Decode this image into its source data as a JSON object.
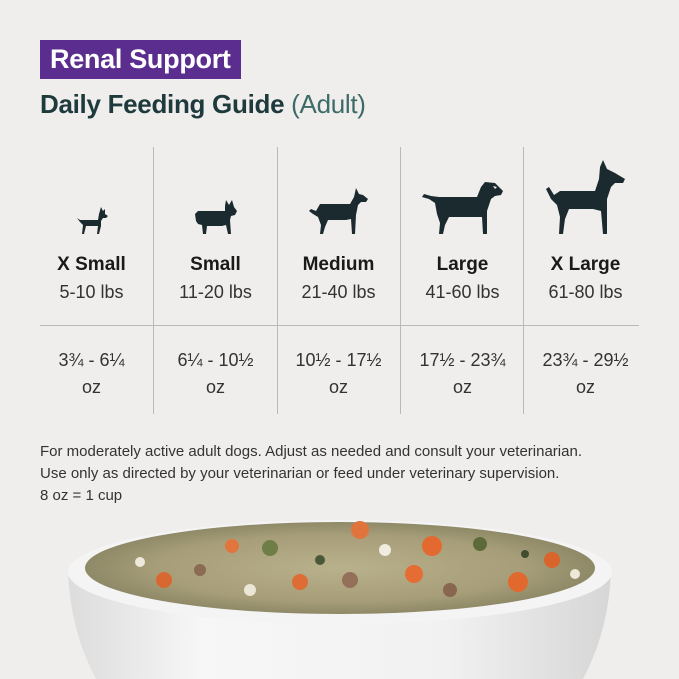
{
  "badge": "Renal Support",
  "title": {
    "main": "Daily Feeding Guide",
    "sub": "(Adult)"
  },
  "sizes": [
    {
      "name": "X Small",
      "weight": "5-10 lbs",
      "amount_line1": "3¾ - 6¼",
      "amount_line2": "oz",
      "icon": "x-small-dog-icon"
    },
    {
      "name": "Small",
      "weight": "11-20 lbs",
      "amount_line1": "6¼ - 10½",
      "amount_line2": "oz",
      "icon": "small-dog-icon"
    },
    {
      "name": "Medium",
      "weight": "21-40 lbs",
      "amount_line1": "10½ - 17½",
      "amount_line2": "oz",
      "icon": "medium-dog-icon"
    },
    {
      "name": "Large",
      "weight": "41-60 lbs",
      "amount_line1": "17½ - 23¾",
      "amount_line2": "oz",
      "icon": "large-dog-icon"
    },
    {
      "name": "X Large",
      "weight": "61-80 lbs",
      "amount_line1": "23¾ - 29½",
      "amount_line2": "oz",
      "icon": "x-large-dog-icon"
    }
  ],
  "notes": [
    "For moderately active adult dogs. Adjust as needed and consult your veterinarian.",
    "Use only as directed by your veterinarian or feed under veterinary supervision.",
    "8 oz = 1 cup"
  ],
  "colors": {
    "badge": "#5b2d8e",
    "title": "#1f3a3d",
    "subtitle": "#3d6b68",
    "background": "#efeeec",
    "icon": "#1b2a2e"
  }
}
